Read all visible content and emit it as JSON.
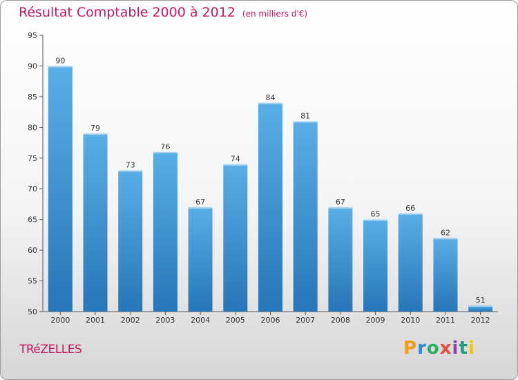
{
  "header": {
    "title": "Résultat Comptable 2000 à 2012",
    "subtitle": "(en milliers d'€)"
  },
  "commune": "TRéZELLES",
  "logo": [
    "P",
    "r",
    "o",
    "x",
    "i",
    "t",
    "i"
  ],
  "colors": {
    "title": "#c2185b",
    "bar_top": "#5aaee6",
    "bar_bottom": "#2676b8"
  },
  "chart_data": {
    "type": "bar",
    "categories": [
      "2000",
      "2001",
      "2002",
      "2003",
      "2004",
      "2005",
      "2006",
      "2007",
      "2008",
      "2009",
      "2010",
      "2011",
      "2012"
    ],
    "values": [
      90,
      79,
      73,
      76,
      67,
      74,
      84,
      81,
      67,
      65,
      66,
      62,
      51
    ],
    "ylim": [
      50,
      95
    ],
    "yticks": [
      50,
      55,
      60,
      65,
      70,
      75,
      80,
      85,
      90,
      95
    ],
    "grid": false,
    "title": "Résultat Comptable 2000 à 2012",
    "xlabel": "",
    "ylabel": ""
  }
}
